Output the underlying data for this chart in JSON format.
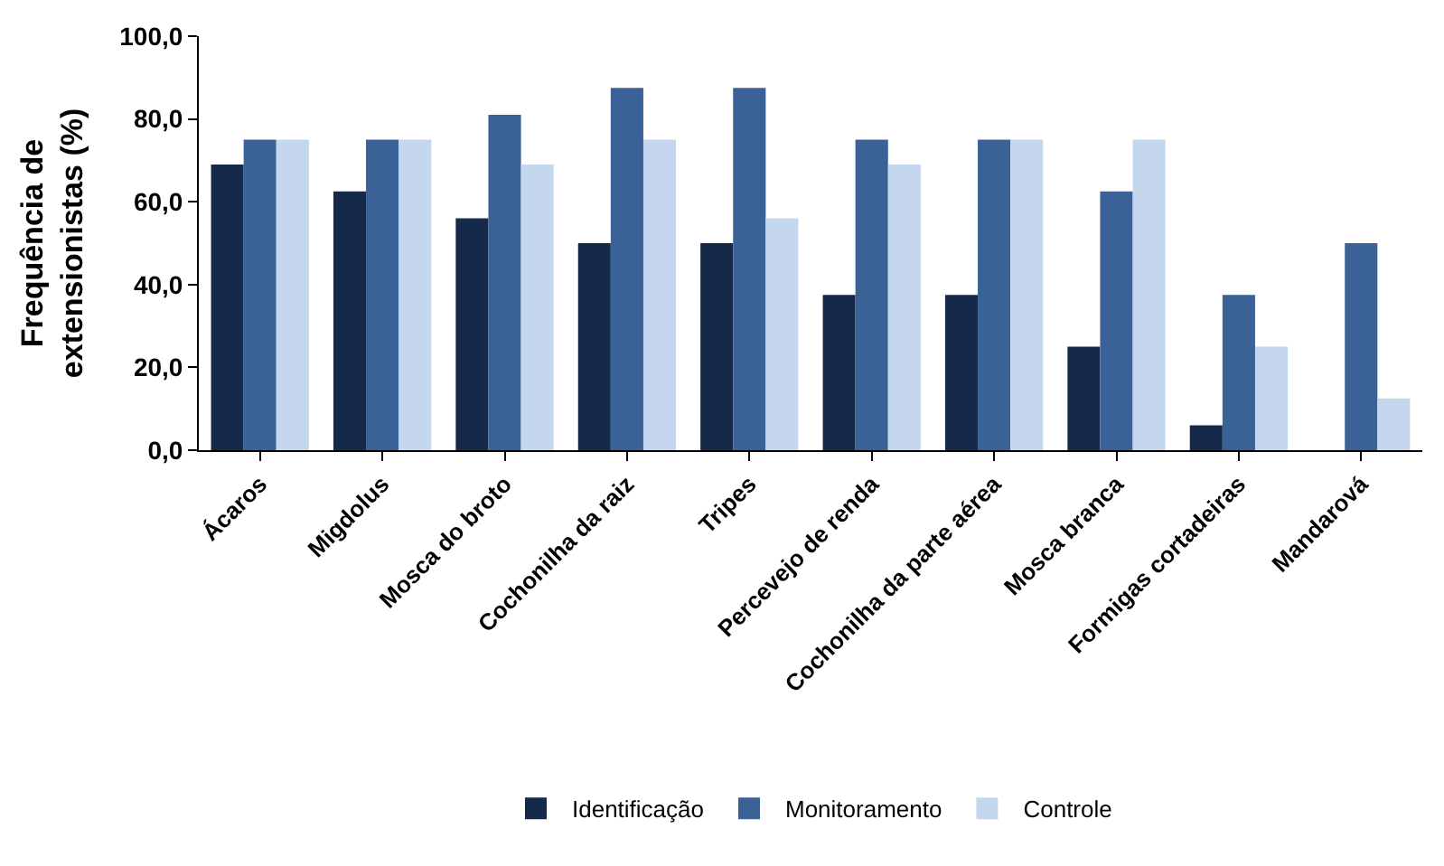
{
  "chart_data": {
    "type": "bar",
    "ylabel": "Frequência de\nextensionistas (%)",
    "categories": [
      "Ácaros",
      "Migdolus",
      "Mosca do broto",
      "Cochonilha da raiz",
      "Tripes",
      "Percevejo de renda",
      "Cochonilha da parte aérea",
      "Mosca branca",
      "Formigas cortadeiras",
      "Mandarová"
    ],
    "series": [
      {
        "name": "Identificação",
        "color": "#152a4a",
        "values": [
          69,
          62.5,
          56,
          50,
          50,
          37.5,
          37.5,
          25,
          6,
          0
        ]
      },
      {
        "name": "Monitoramento",
        "color": "#3a6296",
        "values": [
          75,
          75,
          81,
          87.5,
          87.5,
          75,
          75,
          62.5,
          37.5,
          50
        ]
      },
      {
        "name": "Controle",
        "color": "#c5d7ef",
        "values": [
          75,
          75,
          69,
          75,
          56,
          69,
          75,
          75,
          25,
          12.5
        ]
      }
    ],
    "ylim": [
      0,
      100
    ],
    "yticks": [
      {
        "value": 0,
        "label": "0,0"
      },
      {
        "value": 20,
        "label": "20,0"
      },
      {
        "value": 40,
        "label": "40,0"
      },
      {
        "value": 60,
        "label": "60,0"
      },
      {
        "value": 80,
        "label": "80,0"
      },
      {
        "value": 100,
        "label": "100,0"
      }
    ],
    "legend": "bottom"
  }
}
